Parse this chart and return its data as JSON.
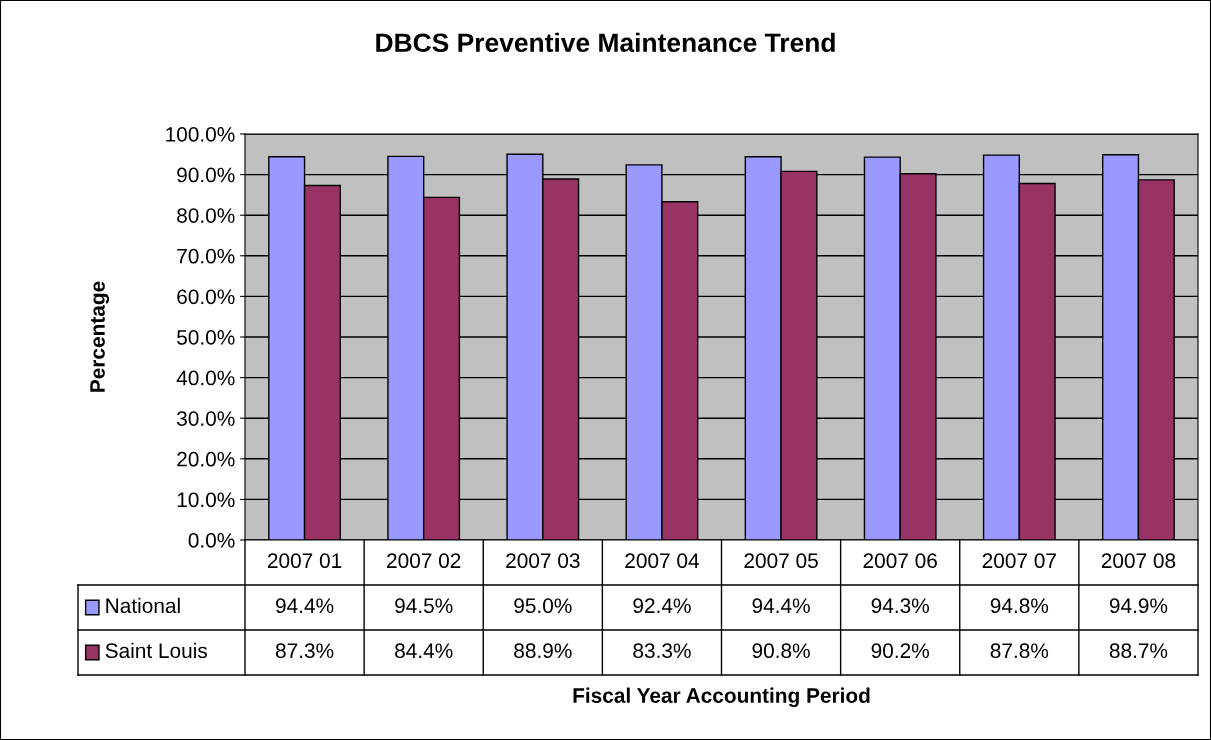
{
  "chart_data": {
    "type": "bar",
    "title": "DBCS Preventive Maintenance Trend",
    "ylabel": "Percentage",
    "categories": [
      "2007 01",
      "2007 02",
      "2007 03",
      "2007 04",
      "2007 05",
      "2007 06",
      "2007 07",
      "2007 08"
    ],
    "series": [
      {
        "name": "National",
        "color": "#9999ff",
        "values": [
          94.4,
          94.5,
          95.0,
          92.4,
          94.4,
          94.3,
          94.8,
          94.9
        ],
        "value_labels": [
          "94.4%",
          "94.5%",
          "95.0%",
          "92.4%",
          "94.4%",
          "94.3%",
          "94.8%",
          "94.9%"
        ]
      },
      {
        "name": "Saint Louis",
        "color": "#993366",
        "values": [
          87.3,
          84.4,
          88.9,
          83.3,
          90.8,
          90.2,
          87.8,
          88.7
        ],
        "value_labels": [
          "87.3%",
          "84.4%",
          "88.9%",
          "83.3%",
          "90.8%",
          "90.2%",
          "87.8%",
          "88.7%"
        ]
      }
    ],
    "ylim": [
      0,
      100
    ],
    "yticks": [
      {
        "value": 0,
        "label": "0.0%"
      },
      {
        "value": 10,
        "label": "10.0%"
      },
      {
        "value": 20,
        "label": "20.0%"
      },
      {
        "value": 30,
        "label": "30.0%"
      },
      {
        "value": 40,
        "label": "40.0%"
      },
      {
        "value": 50,
        "label": "50.0%"
      },
      {
        "value": 60,
        "label": "60.0%"
      },
      {
        "value": 70,
        "label": "70.0%"
      },
      {
        "value": 80,
        "label": "80.0%"
      },
      {
        "value": 90,
        "label": "90.0%"
      },
      {
        "value": 100,
        "label": "100.0%"
      }
    ],
    "grid": "y",
    "legend": "bottom left",
    "annotations": [
      "Fiscal Year Accounting Period"
    ]
  }
}
